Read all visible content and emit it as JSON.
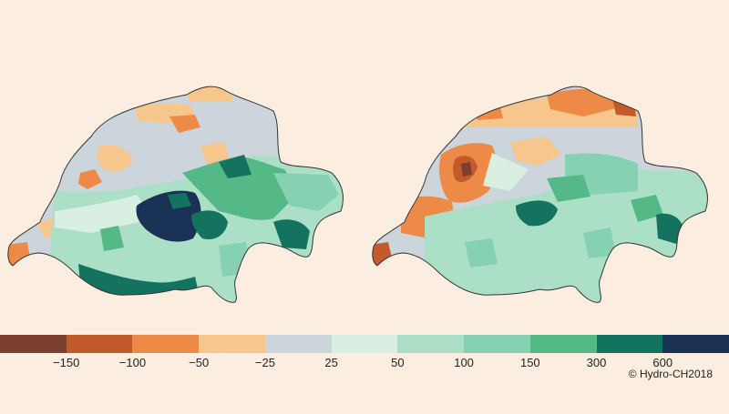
{
  "maps": [
    {
      "id": "left",
      "region_colors": "mostly positive with deep blue central Alps"
    },
    {
      "id": "right",
      "region_colors": "more negative west and north"
    }
  ],
  "legend": {
    "colors": [
      "#7b3f2f",
      "#c25a2a",
      "#ee8a47",
      "#f6c68c",
      "#ccd5dc",
      "#d9efe2",
      "#ace0c6",
      "#86d1b1",
      "#54b887",
      "#14735f",
      "#1b3257"
    ],
    "ticks": [
      "−150",
      "−100",
      "−50",
      "−25",
      "25",
      "50",
      "100",
      "150",
      "300",
      "600"
    ]
  },
  "copyright": "© Hydro-CH2018"
}
